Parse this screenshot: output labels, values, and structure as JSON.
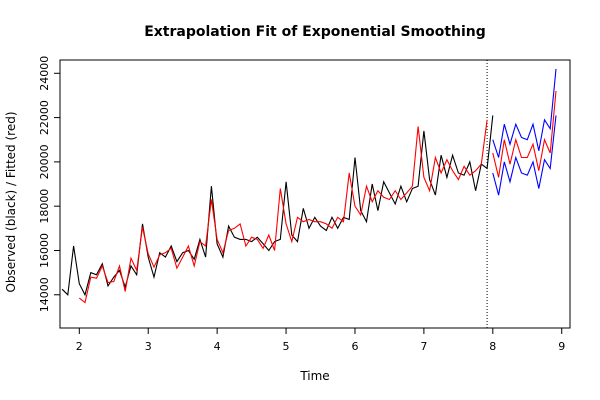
{
  "chart_data": {
    "type": "line",
    "title": "Extrapolation Fit of Exponential Smoothing",
    "xlabel": "Time",
    "ylabel": "Observed (black) / Fitted (red)",
    "xlim": [
      1.72,
      9.12
    ],
    "ylim": [
      12500,
      24600
    ],
    "x_ticks": [
      "2",
      "3",
      "4",
      "5",
      "6",
      "7",
      "8",
      "9"
    ],
    "y_ticks": [
      "14000",
      "16000",
      "18000",
      "20000",
      "22000",
      "24000"
    ],
    "grid": false,
    "legend": "none",
    "forecast_origin": 7.917,
    "series": [
      {
        "color": "#000000",
        "x_start": 1.75,
        "x_step": 0.0833333,
        "values": [
          14250,
          14000,
          16200,
          14500,
          14000,
          15000,
          14900,
          15400,
          14400,
          14800,
          15100,
          14350,
          15300,
          14900,
          17200,
          15700,
          14800,
          15900,
          15700,
          16200,
          15500,
          15900,
          16000,
          15600,
          16500,
          15700,
          18900,
          16300,
          15700,
          17100,
          16600,
          16500,
          16500,
          16400,
          16600,
          16300,
          16000,
          16400,
          16500,
          19100,
          16700,
          16400,
          17900,
          17000,
          17500,
          17100,
          16900,
          17500,
          17000,
          17500,
          17400,
          20200,
          17800,
          17300,
          19000,
          17800,
          19100,
          18600,
          18100,
          18900,
          18200,
          18800,
          18900,
          21400,
          19200,
          18500,
          20300,
          19300,
          20300,
          19500,
          19400,
          20000,
          18700,
          19900,
          19700,
          22100
        ]
      },
      {
        "color": "#ff0000",
        "x_start": 2.0,
        "x_step": 0.0833333,
        "values": [
          13850,
          13650,
          14800,
          14750,
          15300,
          14550,
          14600,
          15300,
          14150,
          15650,
          15100,
          17050,
          15850,
          15250,
          15800,
          15900,
          16100,
          15200,
          15700,
          16200,
          15300,
          16400,
          16200,
          18300,
          16500,
          15900,
          16900,
          17000,
          17200,
          16200,
          16600,
          16500,
          16100,
          16700,
          16000,
          18800,
          17200,
          16400,
          17500,
          17300,
          17400,
          17300,
          17300,
          17200,
          17000,
          17500,
          17300,
          19500,
          18000,
          17600,
          18900,
          18200,
          18700,
          18400,
          18300,
          18700,
          18300,
          18600,
          18900,
          21600,
          19300,
          18700,
          20200,
          19500,
          20100,
          19600,
          19200,
          19800,
          19400,
          19600,
          19900,
          21900
        ]
      },
      {
        "color": "#ff0000",
        "x_start": 8.0,
        "x_step": 0.0833333,
        "values": [
          20400,
          19300,
          21000,
          19900,
          21000,
          20200,
          20200,
          20800,
          19600,
          21000,
          20400,
          23200
        ]
      },
      {
        "color": "#0000ff",
        "x_start": 8.0,
        "x_step": 0.0833333,
        "values": [
          21000,
          20200,
          21700,
          20800,
          21700,
          21100,
          21000,
          21700,
          20500,
          21900,
          21500,
          24200
        ]
      },
      {
        "color": "#0000ff",
        "x_start": 8.0,
        "x_step": 0.0833333,
        "values": [
          19500,
          18500,
          20000,
          19100,
          20200,
          19500,
          19400,
          20000,
          18800,
          20100,
          19700,
          22100
        ]
      }
    ]
  }
}
